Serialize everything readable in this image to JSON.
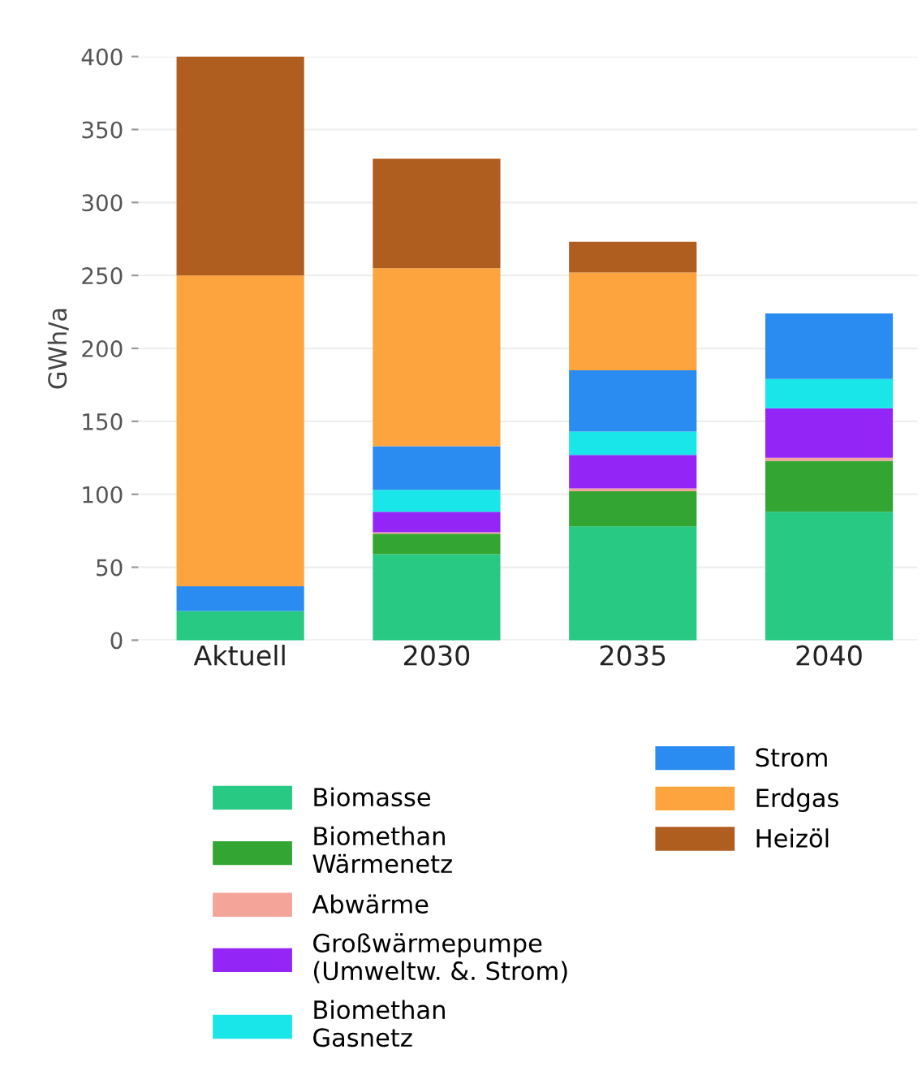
{
  "chart_data": {
    "type": "bar",
    "stacked": true,
    "ylabel": "GWh/a",
    "categories": [
      "Aktuell",
      "2030",
      "2035",
      "2040"
    ],
    "series": [
      {
        "name": "Biomasse",
        "color": "#27c983",
        "values": [
          20,
          59,
          78,
          88
        ]
      },
      {
        "name": "Biomethan\nWärmenetz",
        "color": "#33a532",
        "values": [
          0,
          14,
          24,
          35
        ]
      },
      {
        "name": "Abwärme",
        "color": "#f5a49a",
        "values": [
          0,
          1,
          2,
          2
        ]
      },
      {
        "name": "Großwärmepumpe\n(Umweltw. &. Strom)",
        "color": "#9326f7",
        "values": [
          0,
          14,
          23,
          34
        ]
      },
      {
        "name": "Biomethan\nGasnetz",
        "color": "#18e6e8",
        "values": [
          0,
          15,
          16,
          20
        ]
      },
      {
        "name": "Strom",
        "color": "#2a8cf0",
        "values": [
          17,
          30,
          42,
          45
        ]
      },
      {
        "name": "Erdgas",
        "color": "#fda43e",
        "values": [
          213,
          122,
          67,
          0
        ]
      },
      {
        "name": "Heizöl",
        "color": "#b05e1f",
        "values": [
          150,
          75,
          21,
          0
        ]
      }
    ],
    "ylim": [
      0,
      400
    ],
    "yticks": [
      0,
      50,
      100,
      150,
      200,
      250,
      300,
      350,
      400
    ],
    "grid": "y",
    "legend": "bottom"
  }
}
